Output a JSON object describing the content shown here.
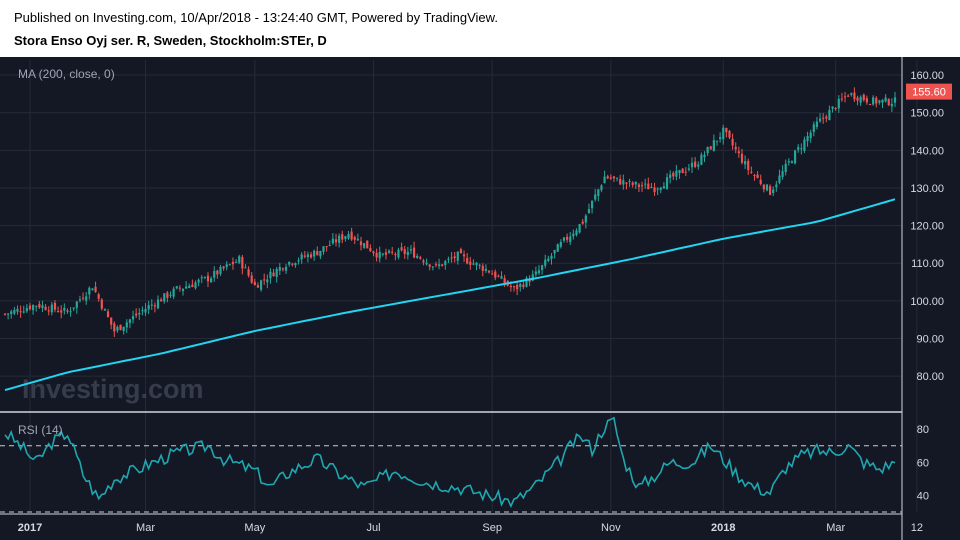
{
  "header": {
    "published": "Published on Investing.com, 10/Apr/2018 - 13:24:40 GMT, Powered by TradingView.",
    "symbol": "Stora Enso Oyj ser. R, Sweden, Stockholm:STEr, D"
  },
  "watermark": "Investing.com",
  "chart_data": {
    "type": "candlestick",
    "price_panel": {
      "indicator_label": "MA (200, close, 0)",
      "ylim": [
        71,
        164
      ],
      "ticks": [
        "80.00",
        "90.00",
        "100.00",
        "110.00",
        "120.00",
        "130.00",
        "140.00",
        "150.00",
        "160.00"
      ],
      "last_price_label": "155.60",
      "last_price": 155.6,
      "ma_color": "#22d6f2",
      "up_color": "#26a69a",
      "down_color": "#ef5350",
      "close_anchors": [
        [
          0,
          96.5
        ],
        [
          10,
          99
        ],
        [
          20,
          97
        ],
        [
          28,
          104
        ],
        [
          35,
          92
        ],
        [
          45,
          98
        ],
        [
          55,
          103
        ],
        [
          65,
          106
        ],
        [
          75,
          111
        ],
        [
          80,
          104
        ],
        [
          90,
          110
        ],
        [
          100,
          113
        ],
        [
          110,
          118
        ],
        [
          120,
          112
        ],
        [
          130,
          113
        ],
        [
          138,
          109
        ],
        [
          145,
          112
        ],
        [
          155,
          108
        ],
        [
          163,
          103
        ],
        [
          170,
          107
        ],
        [
          178,
          115
        ],
        [
          185,
          121
        ],
        [
          192,
          133
        ],
        [
          200,
          131
        ],
        [
          208,
          130
        ],
        [
          216,
          134
        ],
        [
          222,
          137
        ],
        [
          230,
          145
        ],
        [
          238,
          135
        ],
        [
          245,
          129
        ],
        [
          252,
          138
        ],
        [
          260,
          147
        ],
        [
          270,
          155
        ],
        [
          278,
          153
        ],
        [
          285,
          153
        ]
      ],
      "ma_points": [
        [
          0,
          76.3
        ],
        [
          20,
          81
        ],
        [
          50,
          86
        ],
        [
          80,
          92
        ],
        [
          110,
          97
        ],
        [
          140,
          101.5
        ],
        [
          170,
          106
        ],
        [
          200,
          111
        ],
        [
          230,
          116.5
        ],
        [
          260,
          121
        ],
        [
          285,
          127
        ]
      ]
    },
    "rsi_panel": {
      "label": "RSI (14)",
      "ylim": [
        30,
        88
      ],
      "ticks": [
        "80",
        "60",
        "40"
      ],
      "levels": [
        70,
        30
      ],
      "line_color": "#1fa7b0",
      "anchors": [
        [
          0,
          78
        ],
        [
          5,
          70
        ],
        [
          10,
          60
        ],
        [
          15,
          72
        ],
        [
          20,
          78
        ],
        [
          25,
          53
        ],
        [
          30,
          38
        ],
        [
          35,
          50
        ],
        [
          45,
          58
        ],
        [
          55,
          66
        ],
        [
          65,
          70
        ],
        [
          70,
          62
        ],
        [
          80,
          55
        ],
        [
          85,
          45
        ],
        [
          90,
          53
        ],
        [
          95,
          58
        ],
        [
          100,
          62
        ],
        [
          108,
          52
        ],
        [
          115,
          45
        ],
        [
          125,
          55
        ],
        [
          135,
          48
        ],
        [
          145,
          45
        ],
        [
          155,
          40
        ],
        [
          163,
          36
        ],
        [
          170,
          46
        ],
        [
          178,
          62
        ],
        [
          182,
          72
        ],
        [
          185,
          75
        ],
        [
          188,
          68
        ],
        [
          192,
          82
        ],
        [
          195,
          85
        ],
        [
          198,
          62
        ],
        [
          203,
          45
        ],
        [
          208,
          52
        ],
        [
          213,
          60
        ],
        [
          220,
          60
        ],
        [
          226,
          70
        ],
        [
          230,
          62
        ],
        [
          235,
          52
        ],
        [
          240,
          45
        ],
        [
          245,
          42
        ],
        [
          250,
          57
        ],
        [
          255,
          64
        ],
        [
          260,
          67
        ],
        [
          265,
          66
        ],
        [
          270,
          70
        ],
        [
          275,
          60
        ],
        [
          280,
          56
        ],
        [
          285,
          60
        ]
      ]
    },
    "x_axis": {
      "total_days": 285,
      "labels": [
        [
          "2017",
          8,
          true
        ],
        [
          "Mar",
          45,
          false
        ],
        [
          "May",
          80,
          false
        ],
        [
          "Jul",
          118,
          false
        ],
        [
          "Sep",
          156,
          false
        ],
        [
          "Nov",
          194,
          false
        ],
        [
          "2018",
          230,
          true
        ],
        [
          "Mar",
          266,
          false
        ],
        [
          "12",
          292,
          false
        ]
      ]
    }
  }
}
